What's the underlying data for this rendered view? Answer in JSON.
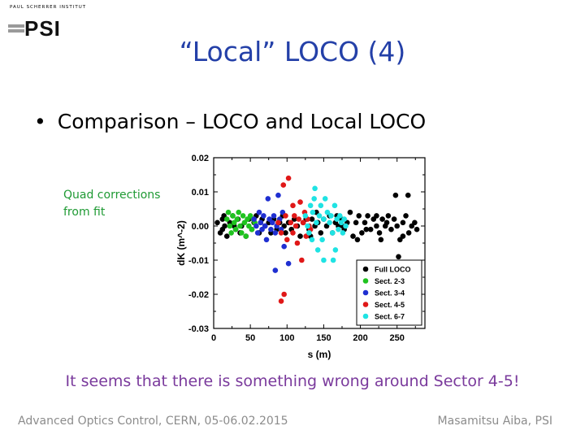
{
  "logo": {
    "caption": "PAUL SCHERRER INSTITUT",
    "mark": "PSI"
  },
  "title": "“Local” LOCO (4)",
  "bullet": {
    "marker": "•",
    "text": "Comparison – LOCO and Local LOCO"
  },
  "annotation": {
    "line1": "Quad corrections",
    "line2": "from fit"
  },
  "conclusion": "It seems that there is something wrong around Sector 4-5!",
  "footer": {
    "left": "Advanced Optics Control, CERN, 05-06.02.2015",
    "right": "Masamitsu Aiba, PSI"
  },
  "chart_data": {
    "type": "scatter",
    "xlabel": "s (m)",
    "ylabel": "dK (m^-2)",
    "xlim": [
      0,
      288
    ],
    "ylim": [
      -0.03,
      0.02
    ],
    "xticks": [
      0,
      50,
      100,
      150,
      200,
      250
    ],
    "yticks": [
      -0.03,
      -0.02,
      -0.01,
      0.0,
      0.01,
      0.02
    ],
    "ytick_labels": [
      "-0.03",
      "-0.02",
      "-0.01",
      "0.00",
      "0.01",
      "0.02"
    ],
    "legend_position": "bottom-right",
    "grid": false,
    "series": [
      {
        "name": "Full LOCO",
        "color": "#000000",
        "points": [
          [
            5,
            0.001
          ],
          [
            9,
            -0.002
          ],
          [
            12,
            0.002
          ],
          [
            15,
            0.0
          ],
          [
            18,
            -0.003
          ],
          [
            22,
            0.001
          ],
          [
            26,
            0.003
          ],
          [
            30,
            -0.001
          ],
          [
            33,
            0.002
          ],
          [
            38,
            0.0
          ],
          [
            44,
            -0.003
          ],
          [
            48,
            0.002
          ],
          [
            52,
            -0.001
          ],
          [
            55,
            0.001
          ],
          [
            58,
            0.003
          ],
          [
            62,
            -0.002
          ],
          [
            66,
            0.002
          ],
          [
            70,
            0.0
          ],
          [
            75,
            0.001
          ],
          [
            78,
            -0.002
          ],
          [
            82,
            0.002
          ],
          [
            86,
            -0.001
          ],
          [
            90,
            0.001
          ],
          [
            94,
            0.003
          ],
          [
            98,
            -0.002
          ],
          [
            102,
            0.001
          ],
          [
            106,
            -0.001
          ],
          [
            110,
            0.002
          ],
          [
            114,
            0.0
          ],
          [
            118,
            -0.003
          ],
          [
            122,
            0.001
          ],
          [
            126,
            0.002
          ],
          [
            130,
            -0.001
          ],
          [
            134,
            0.002
          ],
          [
            138,
            0.0
          ],
          [
            142,
            0.001
          ],
          [
            146,
            -0.002
          ],
          [
            150,
            0.002
          ],
          [
            154,
            0.0
          ],
          [
            158,
            0.003
          ],
          [
            162,
            -0.002
          ],
          [
            166,
            0.001
          ],
          [
            170,
            0.0
          ],
          [
            174,
            0.002
          ],
          [
            178,
            -0.001
          ],
          [
            182,
            0.001
          ],
          [
            186,
            0.004
          ],
          [
            190,
            -0.003
          ],
          [
            194,
            0.001
          ],
          [
            198,
            0.003
          ],
          [
            202,
            -0.002
          ],
          [
            206,
            0.001
          ],
          [
            210,
            0.003
          ],
          [
            214,
            -0.001
          ],
          [
            218,
            0.002
          ],
          [
            222,
            0.0
          ],
          [
            226,
            -0.002
          ],
          [
            230,
            0.002
          ],
          [
            234,
            0.0
          ],
          [
            238,
            0.003
          ],
          [
            242,
            -0.001
          ],
          [
            246,
            0.002
          ],
          [
            250,
            0.0
          ],
          [
            254,
            -0.004
          ],
          [
            258,
            0.001
          ],
          [
            262,
            0.003
          ],
          [
            266,
            -0.002
          ],
          [
            270,
            0.0
          ],
          [
            274,
            0.001
          ],
          [
            277,
            -0.001
          ],
          [
            12,
            -0.001
          ],
          [
            28,
            0.0
          ],
          [
            36,
            -0.002
          ],
          [
            64,
            0.001
          ],
          [
            96,
            0.0
          ],
          [
            132,
            -0.003
          ],
          [
            176,
            0.0
          ],
          [
            196,
            -0.004
          ],
          [
            222,
            0.003
          ],
          [
            248,
            0.009
          ],
          [
            258,
            -0.003
          ],
          [
            265,
            0.009
          ],
          [
            14,
            0.003
          ],
          [
            140,
            0.004
          ],
          [
            168,
            0.003
          ],
          [
            208,
            -0.001
          ],
          [
            236,
            0.001
          ],
          [
            228,
            -0.004
          ],
          [
            252,
            -0.009
          ]
        ]
      },
      {
        "name": "Sect. 2-3",
        "color": "#1fc31f",
        "points": [
          [
            18,
            0.002
          ],
          [
            20,
            0.004
          ],
          [
            22,
            0.0
          ],
          [
            24,
            -0.002
          ],
          [
            26,
            0.003
          ],
          [
            28,
            0.001
          ],
          [
            30,
            -0.001
          ],
          [
            32,
            0.002
          ],
          [
            34,
            0.004
          ],
          [
            36,
            0.0
          ],
          [
            38,
            -0.002
          ],
          [
            40,
            0.003
          ],
          [
            42,
            0.001
          ],
          [
            44,
            -0.003
          ],
          [
            46,
            0.002
          ],
          [
            48,
            0.0
          ],
          [
            50,
            0.003
          ],
          [
            52,
            -0.001
          ],
          [
            54,
            0.002
          ],
          [
            56,
            0.001
          ]
        ]
      },
      {
        "name": "Sect. 3-4",
        "color": "#1f2fd1",
        "points": [
          [
            55,
            0.002
          ],
          [
            58,
            0.0
          ],
          [
            60,
            -0.002
          ],
          [
            62,
            0.004
          ],
          [
            64,
            0.001
          ],
          [
            66,
            -0.001
          ],
          [
            68,
            0.003
          ],
          [
            70,
            0.0
          ],
          [
            72,
            -0.004
          ],
          [
            74,
            0.008
          ],
          [
            76,
            0.002
          ],
          [
            78,
            -0.001
          ],
          [
            80,
            0.001
          ],
          [
            82,
            0.003
          ],
          [
            84,
            -0.002
          ],
          [
            86,
            0.0
          ],
          [
            88,
            0.009
          ],
          [
            90,
            0.002
          ],
          [
            92,
            -0.001
          ],
          [
            94,
            0.004
          ],
          [
            84,
            -0.013
          ],
          [
            102,
            -0.011
          ],
          [
            96,
            -0.006
          ]
        ]
      },
      {
        "name": "Sect. 4-5",
        "color": "#e01818",
        "points": [
          [
            88,
            0.001
          ],
          [
            92,
            -0.002
          ],
          [
            95,
            0.012
          ],
          [
            98,
            0.003
          ],
          [
            100,
            -0.004
          ],
          [
            102,
            0.014
          ],
          [
            105,
            0.001
          ],
          [
            108,
            -0.002
          ],
          [
            110,
            0.003
          ],
          [
            112,
            0.0
          ],
          [
            114,
            -0.005
          ],
          [
            116,
            0.002
          ],
          [
            118,
            0.007
          ],
          [
            120,
            -0.01
          ],
          [
            122,
            0.001
          ],
          [
            124,
            0.004
          ],
          [
            126,
            -0.003
          ],
          [
            128,
            0.002
          ],
          [
            130,
            0.0
          ],
          [
            132,
            -0.001
          ],
          [
            96,
            -0.02
          ],
          [
            92,
            -0.022
          ],
          [
            108,
            0.006
          ]
        ]
      },
      {
        "name": "Sect. 6-7",
        "color": "#1fe3e3",
        "points": [
          [
            125,
            0.003
          ],
          [
            128,
            0.0
          ],
          [
            130,
            -0.002
          ],
          [
            132,
            0.006
          ],
          [
            135,
            0.004
          ],
          [
            137,
            0.008
          ],
          [
            140,
            0.001
          ],
          [
            142,
            -0.007
          ],
          [
            144,
            0.003
          ],
          [
            146,
            0.006
          ],
          [
            148,
            -0.004
          ],
          [
            150,
            0.002
          ],
          [
            152,
            0.008
          ],
          [
            155,
            0.004
          ],
          [
            158,
            0.001
          ],
          [
            160,
            0.003
          ],
          [
            162,
            -0.002
          ],
          [
            165,
            0.006
          ],
          [
            168,
            0.002
          ],
          [
            170,
            -0.001
          ],
          [
            172,
            0.003
          ],
          [
            174,
            0.001
          ],
          [
            176,
            -0.002
          ],
          [
            178,
            0.002
          ],
          [
            180,
            0.0
          ],
          [
            138,
            0.011
          ],
          [
            150,
            -0.01
          ],
          [
            163,
            -0.01
          ],
          [
            166,
            -0.007
          ],
          [
            134,
            -0.004
          ]
        ]
      }
    ]
  }
}
